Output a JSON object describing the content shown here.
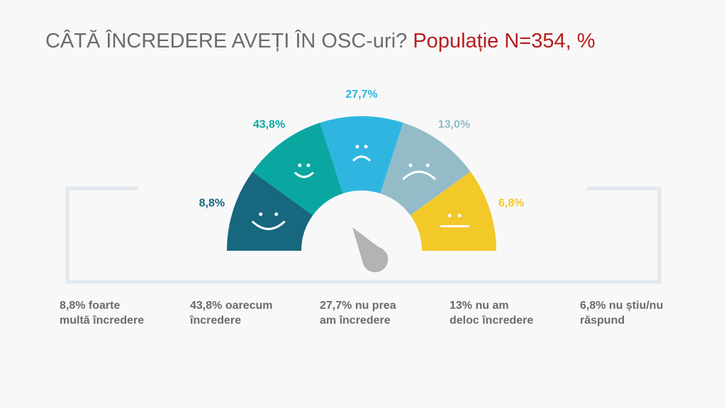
{
  "title": {
    "main": "CÂTĂ ÎNCREDERE AVEȚI ÎN OSC-uri?",
    "sub": "Populație N=354, %"
  },
  "colors": {
    "title": "#6b6b6b",
    "subtitle": "#b71c1c",
    "bracket": "#e2e9ee",
    "needle": "#b3b3b3",
    "legend_text": "#6b6b6b"
  },
  "chart_data": {
    "type": "pie",
    "subtype": "semicircle-gauge",
    "categories": [
      "foarte multă încredere",
      "oarecum încredere",
      "nu prea am încredere",
      "nu am deloc încredere",
      "nu știu/nu răspund"
    ],
    "values": [
      8.8,
      43.8,
      27.7,
      13.0,
      6.8
    ],
    "value_labels": [
      "8,8%",
      "43,8%",
      "27,7%",
      "13,0%",
      "6,8%"
    ],
    "colors": [
      "#17677e",
      "#0aa7a1",
      "#2fb6e0",
      "#93bcc8",
      "#f3c829"
    ],
    "icons": [
      "smile-icon",
      "smile-icon",
      "frown-icon",
      "frown-icon",
      "neutral-face-icon"
    ],
    "legend": [
      {
        "line1": "8,8% foarte",
        "line2": "multă încredere"
      },
      {
        "line1": "43,8% oarecum",
        "line2": "încredere"
      },
      {
        "line1": "27,7% nu prea",
        "line2": "am încredere"
      },
      {
        "line1": "13% nu am",
        "line2": "deloc încredere"
      },
      {
        "line1": "6,8% nu știu/nu",
        "line2": "răspund"
      }
    ]
  }
}
